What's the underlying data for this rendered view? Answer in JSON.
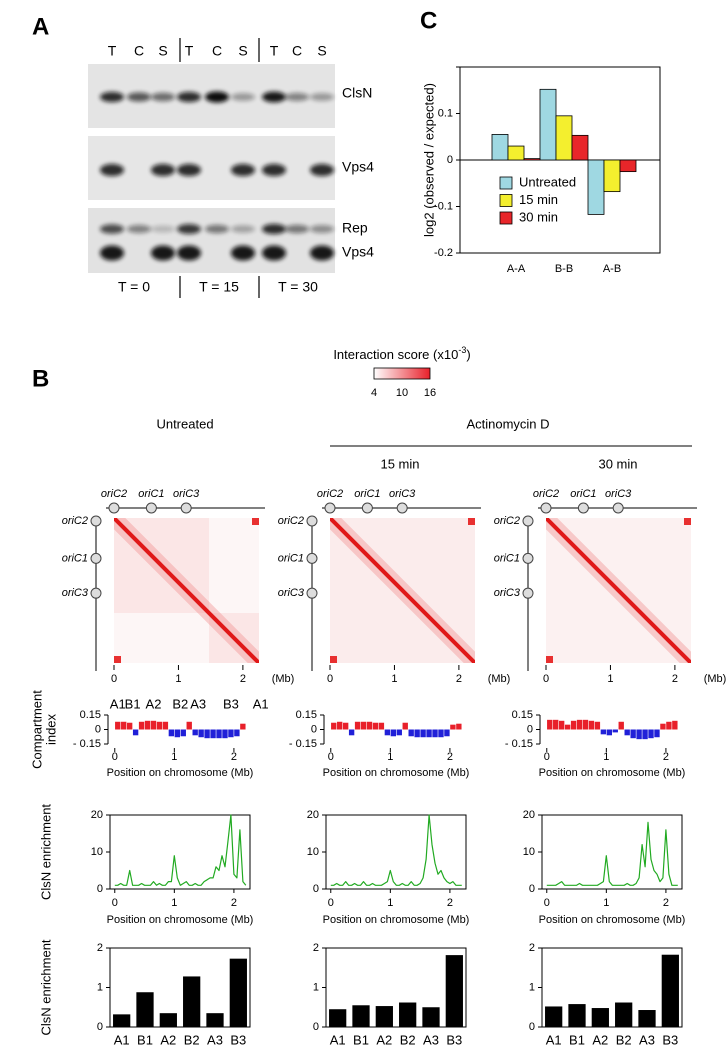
{
  "panel_labels": {
    "a": "A",
    "b": "B",
    "c": "C"
  },
  "blot": {
    "lanes": [
      "T",
      "C",
      "S",
      "T",
      "C",
      "S",
      "T",
      "C",
      "S"
    ],
    "bands": [
      "ClsN",
      "Vps4",
      "Rep",
      "Vps4"
    ],
    "timepoints": [
      "T = 0",
      "T = 15",
      "T = 30"
    ]
  },
  "colorbar": {
    "title": "Interaction score (x10",
    "exponent": "-3",
    "title_end": ")",
    "lim": [
      4,
      16
    ],
    "ticks": [
      4,
      10,
      16
    ],
    "colors": [
      "#ffffff",
      "#e8202a"
    ]
  },
  "conditions": {
    "untreated": "Untreated",
    "treatment": "Actinomycin D",
    "times": [
      "15 min",
      "30 min"
    ]
  },
  "heatmaps": [
    {
      "xlim": [
        0,
        2.25
      ],
      "xticks": [
        0,
        1,
        2
      ],
      "unit": "(Mb)",
      "origins": [
        {
          "label": "oriC2",
          "position": 0
        },
        {
          "label": "oriC1",
          "position": 0.58
        },
        {
          "label": "oriC3",
          "position": 1.12
        }
      ]
    },
    {
      "xlim": [
        0,
        2.25
      ],
      "xticks": [
        0,
        1,
        2
      ],
      "unit": "(Mb)",
      "origins": [
        {
          "label": "oriC2",
          "position": 0
        },
        {
          "label": "oriC1",
          "position": 0.58
        },
        {
          "label": "oriC3",
          "position": 1.12
        }
      ]
    },
    {
      "xlim": [
        0,
        2.25
      ],
      "xticks": [
        0,
        1,
        2
      ],
      "unit": "(Mb)",
      "origins": [
        {
          "label": "oriC2",
          "position": 0
        },
        {
          "label": "oriC1",
          "position": 0.58
        },
        {
          "label": "oriC3",
          "position": 1.12
        }
      ]
    }
  ],
  "chart_data": [
    {
      "type": "bar",
      "categories": [
        "A-A",
        "B-B",
        "A-B"
      ],
      "ylabel": "log2 (observed / expected)",
      "ylim": [
        -0.2,
        0.2
      ],
      "yticks": [
        -0.2,
        -0.1,
        0,
        0.1
      ],
      "legend": "lower left",
      "series": [
        {
          "name": "Untreated",
          "color": "#9fd8e2",
          "values": [
            0.055,
            0.152,
            -0.117
          ]
        },
        {
          "name": "15 min",
          "color": "#f4ef2e",
          "values": [
            0.03,
            0.095,
            -0.068
          ]
        },
        {
          "name": "30 min",
          "color": "#e8262a",
          "values": [
            0.003,
            0.053,
            -0.025
          ]
        }
      ]
    },
    {
      "type": "bar",
      "ylabel": [
        "Compartment",
        "index"
      ],
      "xlabel": "Position on chromosome (Mb)",
      "xlim": [
        -0.08,
        2.27
      ],
      "xticks": [
        0,
        1,
        2
      ],
      "ylim": [
        -0.15,
        0.15
      ],
      "yticks": [
        0.15,
        0,
        {
          "value": -0.15,
          "label": "- 0.15"
        }
      ],
      "positive_color": "#e8202a",
      "negative_color": "#2020d8",
      "segment_labels": [
        {
          "label": "A1",
          "x": 0.05,
          "color": "#e8202a"
        },
        {
          "label": "B1",
          "x": 0.3,
          "color": "#2020d8"
        },
        {
          "label": "A2",
          "x": 0.65,
          "color": "#e8202a"
        },
        {
          "label": "B2",
          "x": 1.1,
          "color": "#2020d8"
        },
        {
          "label": "A3",
          "x": 1.4,
          "color": "#e8202a"
        },
        {
          "label": "B3",
          "x": 1.95,
          "color": "#2020d8"
        },
        {
          "label": "A1",
          "x": 2.45,
          "color": "#e8202a"
        }
      ],
      "x": [
        0.05,
        0.15,
        0.25,
        0.35,
        0.45,
        0.55,
        0.65,
        0.75,
        0.85,
        0.95,
        1.05,
        1.15,
        1.25,
        1.35,
        1.45,
        1.55,
        1.65,
        1.75,
        1.85,
        1.95,
        2.05,
        2.15
      ],
      "values": [
        0.08,
        0.08,
        0.07,
        -0.06,
        0.08,
        0.09,
        0.09,
        0.08,
        0.08,
        -0.07,
        -0.08,
        -0.07,
        0.08,
        -0.06,
        -0.08,
        -0.09,
        -0.09,
        -0.09,
        -0.09,
        -0.08,
        -0.07,
        0.06
      ]
    },
    {
      "type": "bar",
      "xlabel": "Position on chromosome (Mb)",
      "xlim": [
        -0.08,
        2.27
      ],
      "xticks": [
        0,
        1,
        2
      ],
      "ylim": [
        -0.15,
        0.15
      ],
      "yticks": [
        0.15,
        0,
        {
          "value": -0.15,
          "label": "- 0.15"
        }
      ],
      "positive_color": "#e8202a",
      "negative_color": "#2020d8",
      "x": [
        0.05,
        0.15,
        0.25,
        0.35,
        0.45,
        0.55,
        0.65,
        0.75,
        0.85,
        0.95,
        1.05,
        1.15,
        1.25,
        1.35,
        1.45,
        1.55,
        1.65,
        1.75,
        1.85,
        1.95,
        2.05,
        2.15
      ],
      "values": [
        0.07,
        0.08,
        0.07,
        -0.06,
        0.08,
        0.08,
        0.08,
        0.07,
        0.07,
        -0.06,
        -0.07,
        -0.06,
        0.07,
        -0.07,
        -0.08,
        -0.08,
        -0.08,
        -0.08,
        -0.08,
        -0.07,
        0.05,
        0.06
      ]
    },
    {
      "type": "bar",
      "xlabel": "Position on chromosome (Mb)",
      "xlim": [
        -0.08,
        2.27
      ],
      "xticks": [
        0,
        1,
        2
      ],
      "ylim": [
        -0.15,
        0.15
      ],
      "yticks": [
        0.15,
        0,
        {
          "value": -0.15,
          "label": "- 0.15"
        }
      ],
      "positive_color": "#e8202a",
      "negative_color": "#2020d8",
      "x": [
        0.05,
        0.15,
        0.25,
        0.35,
        0.45,
        0.55,
        0.65,
        0.75,
        0.85,
        0.95,
        1.05,
        1.15,
        1.25,
        1.35,
        1.45,
        1.55,
        1.65,
        1.75,
        1.85,
        1.95,
        2.05,
        2.15
      ],
      "values": [
        0.1,
        0.1,
        0.09,
        0.05,
        0.09,
        0.1,
        0.1,
        0.09,
        0.08,
        -0.05,
        -0.06,
        -0.03,
        0.08,
        -0.06,
        -0.09,
        -0.1,
        -0.1,
        -0.09,
        -0.08,
        0.06,
        0.08,
        0.09
      ]
    },
    {
      "type": "line",
      "ylabel": [
        "ClsN enrichment"
      ],
      "xlabel": "Position on chromosome (Mb)",
      "color": "#22aa22",
      "xlim": [
        -0.08,
        2.27
      ],
      "xticks": [
        0,
        1,
        2
      ],
      "ylim": [
        0,
        20
      ],
      "yticks": [
        0,
        10,
        20
      ],
      "x": [
        0,
        0.05,
        0.1,
        0.15,
        0.2,
        0.25,
        0.3,
        0.35,
        0.4,
        0.45,
        0.5,
        0.55,
        0.6,
        0.65,
        0.7,
        0.75,
        0.8,
        0.85,
        0.9,
        0.95,
        1,
        1.05,
        1.1,
        1.15,
        1.2,
        1.25,
        1.3,
        1.35,
        1.4,
        1.45,
        1.5,
        1.55,
        1.6,
        1.65,
        1.7,
        1.75,
        1.8,
        1.85,
        1.9,
        1.95,
        2,
        2.05,
        2.1,
        2.15,
        2.2
      ],
      "values": [
        1,
        1,
        1.5,
        1,
        1,
        5,
        1,
        1,
        1,
        1.5,
        1,
        1,
        1,
        2,
        1,
        1.5,
        1,
        1,
        2,
        2,
        9,
        3,
        1,
        1.5,
        2,
        1,
        1,
        1.5,
        1,
        1,
        2,
        2.5,
        3,
        3,
        6,
        5,
        9,
        6,
        13,
        20,
        4,
        3,
        16,
        2,
        1
      ]
    },
    {
      "type": "line",
      "xlabel": "Position on chromosome (Mb)",
      "color": "#22aa22",
      "xlim": [
        -0.08,
        2.27
      ],
      "xticks": [
        0,
        1,
        2
      ],
      "ylim": [
        0,
        20
      ],
      "yticks": [
        0,
        10,
        20
      ],
      "x": [
        0,
        0.05,
        0.1,
        0.15,
        0.2,
        0.25,
        0.3,
        0.35,
        0.4,
        0.45,
        0.5,
        0.55,
        0.6,
        0.65,
        0.7,
        0.75,
        0.8,
        0.85,
        0.9,
        0.95,
        1,
        1.05,
        1.1,
        1.15,
        1.2,
        1.25,
        1.3,
        1.35,
        1.4,
        1.45,
        1.5,
        1.55,
        1.6,
        1.65,
        1.7,
        1.75,
        1.8,
        1.85,
        1.9,
        1.95,
        2,
        2.05,
        2.1,
        2.15,
        2.2
      ],
      "values": [
        1,
        1,
        1.5,
        1,
        1,
        2,
        1,
        1,
        1.5,
        1,
        1,
        2,
        1,
        1,
        1.5,
        1,
        1,
        1,
        1.5,
        2,
        5,
        2,
        1,
        1,
        1.5,
        1,
        1,
        2,
        1,
        1,
        1.5,
        3,
        8,
        20,
        12,
        7,
        4,
        5,
        3,
        2,
        1.5,
        2,
        1,
        1,
        1
      ]
    },
    {
      "type": "line",
      "xlabel": "Position on chromosome (Mb)",
      "color": "#22aa22",
      "xlim": [
        -0.08,
        2.27
      ],
      "xticks": [
        0,
        1,
        2
      ],
      "ylim": [
        0,
        20
      ],
      "yticks": [
        0,
        10,
        20
      ],
      "x": [
        0,
        0.05,
        0.1,
        0.15,
        0.2,
        0.25,
        0.3,
        0.35,
        0.4,
        0.45,
        0.5,
        0.55,
        0.6,
        0.65,
        0.7,
        0.75,
        0.8,
        0.85,
        0.9,
        0.95,
        1,
        1.05,
        1.1,
        1.15,
        1.2,
        1.25,
        1.3,
        1.35,
        1.4,
        1.45,
        1.5,
        1.55,
        1.6,
        1.65,
        1.7,
        1.75,
        1.8,
        1.85,
        1.9,
        1.95,
        2,
        2.05,
        2.1,
        2.15,
        2.2
      ],
      "values": [
        1,
        1,
        1,
        1,
        1.5,
        2,
        1,
        1,
        1,
        1,
        1,
        1.5,
        1,
        1,
        1,
        1,
        1,
        1,
        1.5,
        2,
        9,
        2,
        1,
        1,
        1,
        1,
        1,
        1.5,
        1,
        1,
        1.5,
        3,
        12,
        6,
        18,
        8,
        5,
        4,
        2,
        3,
        16,
        4,
        1,
        1,
        1
      ]
    },
    {
      "type": "bar",
      "ylabel": [
        "ClsN enrichment"
      ],
      "color": "#000000",
      "categories": [
        "A1",
        "B1",
        "A2",
        "B2",
        "A3",
        "B3"
      ],
      "category_colors": [
        "#e8202a",
        "#2020d8",
        "#e8202a",
        "#2020d8",
        "#e8202a",
        "#2020d8"
      ],
      "ylim": [
        0,
        2
      ],
      "yticks": [
        0,
        1,
        2
      ],
      "values": [
        0.32,
        0.88,
        0.35,
        1.28,
        0.35,
        1.73
      ]
    },
    {
      "type": "bar",
      "color": "#000000",
      "categories": [
        "A1",
        "B1",
        "A2",
        "B2",
        "A3",
        "B3"
      ],
      "category_colors": [
        "#e8202a",
        "#2020d8",
        "#e8202a",
        "#2020d8",
        "#e8202a",
        "#2020d8"
      ],
      "ylim": [
        0,
        2
      ],
      "yticks": [
        0,
        1,
        2
      ],
      "values": [
        0.45,
        0.55,
        0.53,
        0.62,
        0.5,
        1.82
      ]
    },
    {
      "type": "bar",
      "color": "#000000",
      "categories": [
        "A1",
        "B1",
        "A2",
        "B2",
        "A3",
        "B3"
      ],
      "category_colors": [
        "#e8202a",
        "#2020d8",
        "#e8202a",
        "#2020d8",
        "#e8202a",
        "#2020d8"
      ],
      "ylim": [
        0,
        2
      ],
      "yticks": [
        0,
        1,
        2
      ],
      "values": [
        0.52,
        0.58,
        0.48,
        0.62,
        0.43,
        1.83
      ]
    }
  ]
}
